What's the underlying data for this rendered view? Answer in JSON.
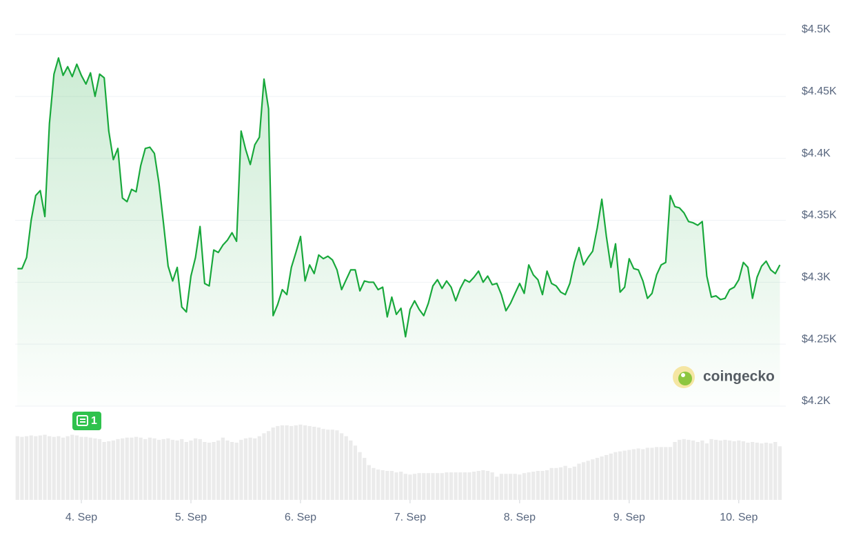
{
  "chart_data": {
    "type": "line",
    "values": [
      4311,
      4311,
      4320,
      4350,
      4370,
      4374,
      4353,
      4428,
      4468,
      4481,
      4467,
      4474,
      4466,
      4476,
      4467,
      4460,
      4469,
      4450,
      4468,
      4465,
      4422,
      4399,
      4408,
      4368,
      4365,
      4375,
      4373,
      4394,
      4408,
      4409,
      4404,
      4380,
      4347,
      4313,
      4301,
      4312,
      4280,
      4276,
      4305,
      4320,
      4345,
      4299,
      4297,
      4326,
      4324,
      4330,
      4334,
      4340,
      4333,
      4422,
      4407,
      4395,
      4411,
      4417,
      4464,
      4440,
      4273,
      4282,
      4294,
      4290,
      4312,
      4324,
      4337,
      4301,
      4314,
      4307,
      4322,
      4319,
      4321,
      4318,
      4310,
      4294,
      4302,
      4310,
      4310,
      4293,
      4301,
      4300,
      4300,
      4294,
      4296,
      4272,
      4288,
      4274,
      4279,
      4256,
      4278,
      4285,
      4278,
      4273,
      4283,
      4297,
      4302,
      4295,
      4301,
      4296,
      4285,
      4295,
      4302,
      4300,
      4304,
      4309,
      4300,
      4305,
      4298,
      4299,
      4290,
      4277,
      4283,
      4291,
      4299,
      4291,
      4314,
      4306,
      4302,
      4290,
      4309,
      4299,
      4297,
      4292,
      4290,
      4299,
      4316,
      4328,
      4314,
      4320,
      4325,
      4344,
      4367,
      4337,
      4312,
      4331,
      4292,
      4296,
      4319,
      4311,
      4310,
      4301,
      4287,
      4291,
      4306,
      4314,
      4316,
      4370,
      4361,
      4360,
      4356,
      4349,
      4348,
      4346,
      4349,
      4305,
      4288,
      4289,
      4286,
      4287,
      4294,
      4296,
      4302,
      4316,
      4312,
      4287,
      4304,
      4313,
      4317,
      4310,
      4307,
      4314
    ],
    "color": "#18a83b",
    "area": true,
    "xlim": [
      -0.5,
      168.3
    ],
    "xticks": [
      {
        "value": 14,
        "label": "4. Sep"
      },
      {
        "value": 38,
        "label": "5. Sep"
      },
      {
        "value": 62,
        "label": "6. Sep"
      },
      {
        "value": 86,
        "label": "7. Sep"
      },
      {
        "value": 110,
        "label": "8. Sep"
      },
      {
        "value": 134,
        "label": "9. Sep"
      },
      {
        "value": 158,
        "label": "10. Sep"
      }
    ],
    "ylim": [
      4200,
      4500
    ],
    "yticks": [
      {
        "value": 4200,
        "label": "$4.2K"
      },
      {
        "value": 4250,
        "label": "$4.25K"
      },
      {
        "value": 4300,
        "label": "$4.3K"
      },
      {
        "value": 4350,
        "label": "$4.35K"
      },
      {
        "value": 4400,
        "label": "$4.4K"
      },
      {
        "value": 4450,
        "label": "$4.45K"
      },
      {
        "value": 4500,
        "label": "$4.5K"
      }
    ],
    "grid": true,
    "volume": {
      "color": "#ebebeb",
      "ylim": [
        0,
        100
      ],
      "values": [
        88,
        87,
        88,
        89,
        88,
        89,
        90,
        88,
        87,
        88,
        86,
        88,
        90,
        89,
        87,
        87,
        86,
        85,
        84,
        80,
        81,
        82,
        84,
        85,
        86,
        86,
        87,
        86,
        84,
        86,
        85,
        83,
        84,
        85,
        83,
        82,
        84,
        80,
        82,
        85,
        84,
        80,
        79,
        80,
        82,
        86,
        82,
        80,
        79,
        83,
        85,
        86,
        85,
        88,
        92,
        95,
        100,
        102,
        103,
        103,
        102,
        103,
        104,
        103,
        102,
        101,
        100,
        98,
        97,
        97,
        96,
        92,
        88,
        82,
        75,
        66,
        58,
        48,
        44,
        42,
        41,
        40,
        40,
        38,
        39,
        36,
        35,
        36,
        37,
        37,
        37,
        37,
        37,
        37,
        38,
        38,
        38,
        38,
        38,
        38,
        39,
        40,
        41,
        40,
        38,
        32,
        36,
        36,
        36,
        36,
        35,
        37,
        38,
        39,
        40,
        40,
        41,
        44,
        44,
        45,
        47,
        44,
        46,
        50,
        52,
        54,
        56,
        58,
        60,
        62,
        64,
        66,
        67,
        68,
        69,
        70,
        71,
        70,
        72,
        72,
        73,
        73,
        73,
        73,
        80,
        83,
        84,
        83,
        82,
        80,
        82,
        78,
        84,
        83,
        82,
        83,
        82,
        81,
        82,
        81,
        79,
        80,
        79,
        78,
        79,
        78,
        80,
        74
      ]
    },
    "news_count": 1,
    "watermark": "coingecko"
  }
}
